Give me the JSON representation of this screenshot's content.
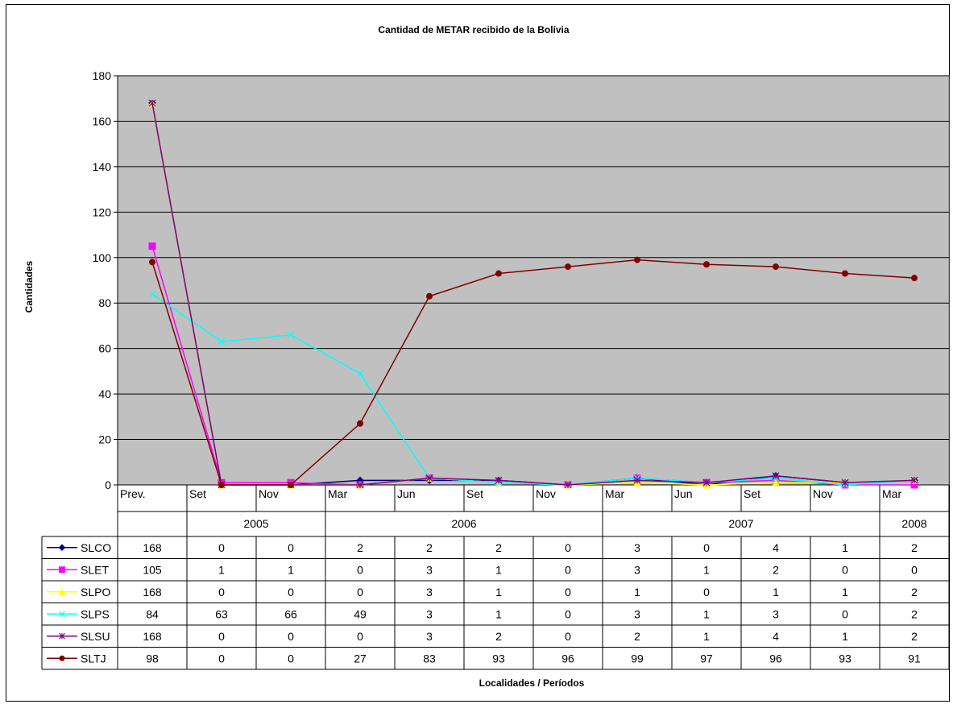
{
  "chart_data": {
    "type": "line",
    "title": "Cantidad de METAR recibido de la Bolívia",
    "ylabel": "Cantidades",
    "xlabel": "Localidades / Períodos",
    "ylim": [
      0,
      180
    ],
    "yticks": [
      0,
      20,
      40,
      60,
      80,
      100,
      120,
      140,
      160,
      180
    ],
    "grid": true,
    "legend": "data-table-left",
    "categories": [
      "Prev.",
      "Set",
      "Nov",
      "Mar",
      "Jun",
      "Set",
      "Nov",
      "Mar",
      "Jun",
      "Set",
      "Nov",
      "Mar"
    ],
    "year_groups": [
      {
        "label": "",
        "span": 1
      },
      {
        "label": "2005",
        "span": 2
      },
      {
        "label": "2006",
        "span": 4
      },
      {
        "label": "2007",
        "span": 4
      },
      {
        "label": "2008",
        "span": 1
      }
    ],
    "series": [
      {
        "name": "SLCO",
        "color": "#000080",
        "marker": "diamond",
        "values": [
          168,
          0,
          0,
          2,
          2,
          2,
          0,
          3,
          0,
          4,
          1,
          2
        ]
      },
      {
        "name": "SLET",
        "color": "#ff00ff",
        "marker": "square",
        "values": [
          105,
          1,
          1,
          0,
          3,
          1,
          0,
          3,
          1,
          2,
          0,
          0
        ]
      },
      {
        "name": "SLPO",
        "color": "#ffff00",
        "marker": "triangle",
        "values": [
          168,
          0,
          0,
          0,
          3,
          1,
          0,
          1,
          0,
          1,
          1,
          2
        ]
      },
      {
        "name": "SLPS",
        "color": "#00ffff",
        "marker": "x",
        "values": [
          84,
          63,
          66,
          49,
          3,
          1,
          0,
          3,
          1,
          3,
          0,
          2
        ]
      },
      {
        "name": "SLSU",
        "color": "#800080",
        "marker": "star",
        "values": [
          168,
          0,
          0,
          0,
          3,
          2,
          0,
          2,
          1,
          4,
          1,
          2
        ]
      },
      {
        "name": "SLTJ",
        "color": "#800000",
        "marker": "circle",
        "values": [
          98,
          0,
          0,
          27,
          83,
          93,
          96,
          99,
          97,
          96,
          93,
          91
        ]
      }
    ],
    "plot_background": "#c0c0c0"
  }
}
